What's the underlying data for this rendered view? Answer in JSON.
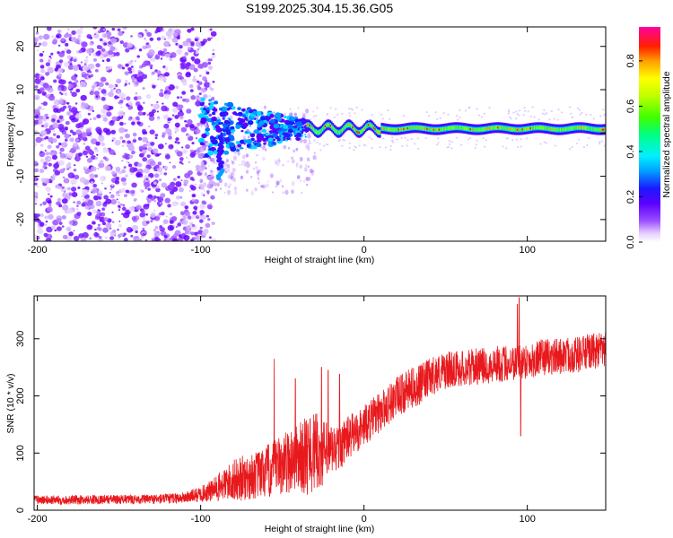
{
  "figure": {
    "title": "S199.2025.304.15.36.G05"
  },
  "chart_data": [
    {
      "type": "heatmap",
      "title": "S199.2025.304.15.36.G05",
      "xlabel": "Height of straight line (km)",
      "ylabel": "Frequency (Hz)",
      "xlim": [
        -202,
        148
      ],
      "ylim": [
        -25,
        24.5
      ],
      "x_ticks": [
        -200,
        -100,
        0,
        100
      ],
      "y_ticks": [
        -20,
        -10,
        0,
        10,
        20
      ],
      "x_tick_labels": [
        "-200",
        "-100",
        "0",
        "100"
      ],
      "y_tick_labels": [
        "-20",
        "-10",
        "0",
        "10",
        "20"
      ],
      "colorbar": {
        "label": "Normalized spectral amplitude",
        "range": [
          0,
          0.95
        ],
        "ticks": [
          0.0,
          0.2,
          0.4,
          0.6,
          0.8
        ],
        "tick_labels": [
          "0.0",
          "0.2",
          "0.4",
          "0.6",
          "0.8"
        ],
        "colormap": "rainbow (white-violet-blue-cyan-green-yellow-orange-red-magenta)"
      },
      "features": {
        "noise_region_x": [
          -202,
          -100
        ],
        "transition_region_x": [
          -100,
          -35
        ],
        "signal_band_frequency_hz": 1.0,
        "signal_band_x": [
          -35,
          148
        ],
        "dip_near_x": -88,
        "dip_frequency_hz": -9
      }
    },
    {
      "type": "line",
      "title": "",
      "xlabel": "Height of straight line (km)",
      "ylabel": "SNR (10 * v/v)",
      "xlim": [
        -202,
        148
      ],
      "ylim": [
        0,
        375
      ],
      "x_ticks": [
        -200,
        -100,
        0,
        100
      ],
      "y_ticks": [
        0,
        100,
        200,
        300
      ],
      "x_tick_labels": [
        "-200",
        "-100",
        "0",
        "100"
      ],
      "y_tick_labels": [
        "0",
        "100",
        "200",
        "300"
      ],
      "color": "#e8191d",
      "series": [
        {
          "name": "SNR",
          "x": [
            -202,
            -180,
            -160,
            -140,
            -120,
            -110,
            -100,
            -95,
            -90,
            -85,
            -80,
            -75,
            -70,
            -65,
            -60,
            -55,
            -50,
            -45,
            -40,
            -35,
            -30,
            -25,
            -20,
            -15,
            -10,
            -5,
            0,
            5,
            10,
            15,
            20,
            25,
            30,
            35,
            40,
            45,
            50,
            55,
            60,
            65,
            70,
            75,
            80,
            85,
            90,
            95,
            100,
            105,
            110,
            115,
            120,
            125,
            130,
            135,
            140,
            148
          ],
          "values": [
            18,
            18,
            19,
            19,
            20,
            22,
            28,
            32,
            38,
            46,
            52,
            55,
            58,
            62,
            66,
            72,
            80,
            88,
            92,
            96,
            102,
            100,
            104,
            110,
            126,
            136,
            148,
            160,
            172,
            186,
            198,
            206,
            215,
            220,
            232,
            240,
            244,
            248,
            248,
            250,
            252,
            252,
            256,
            256,
            258,
            260,
            262,
            264,
            268,
            268,
            270,
            272,
            272,
            275,
            278,
            280
          ],
          "noise_amplitude": [
            8,
            8,
            8,
            8,
            9,
            10,
            14,
            18,
            24,
            30,
            36,
            40,
            40,
            42,
            48,
            52,
            54,
            58,
            60,
            70,
            70,
            60,
            48,
            40,
            40,
            38,
            36,
            36,
            36,
            36,
            36,
            36,
            36,
            36,
            34,
            34,
            32,
            32,
            32,
            32,
            32,
            32,
            32,
            32,
            32,
            32,
            32,
            32,
            32,
            32,
            32,
            32,
            32,
            32,
            32,
            32
          ],
          "spikes": [
            {
              "x": -55,
              "value": 265
            },
            {
              "x": -42,
              "value": 230
            },
            {
              "x": -33,
              "value": 160
            },
            {
              "x": -26,
              "value": 250
            },
            {
              "x": -22,
              "value": 245
            },
            {
              "x": -15,
              "value": 238
            },
            {
              "x": -12,
              "value": 152
            },
            {
              "x": 94,
              "value": 360
            },
            {
              "x": 95,
              "value": 372
            },
            {
              "x": 96,
              "value": 130
            }
          ]
        }
      ]
    }
  ]
}
